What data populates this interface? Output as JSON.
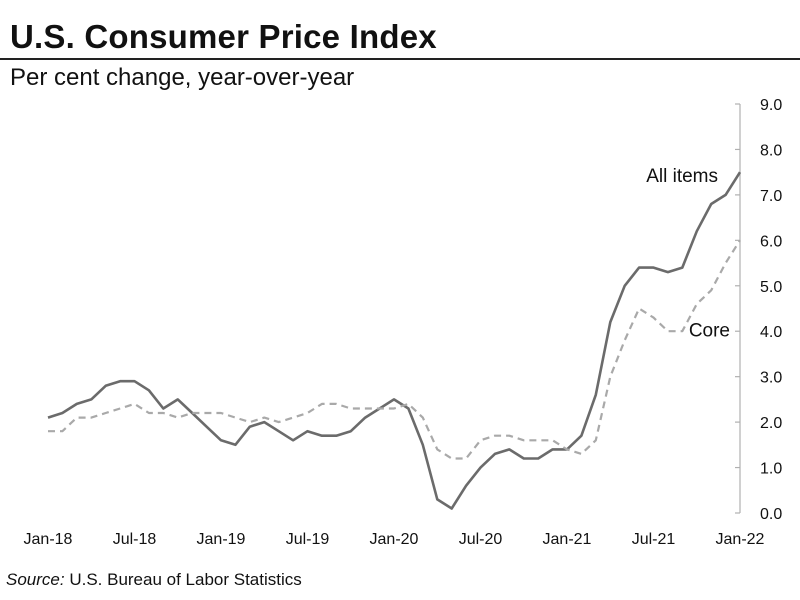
{
  "title": "U.S. Consumer Price Index",
  "subtitle": "Per cent change, year-over-year",
  "source_label": "Source:",
  "source_text": " U.S. Bureau of Labor Statistics",
  "colors": {
    "all_items": "#6b6b6b",
    "core": "#a9a9a9",
    "axis": "#b0b0b0"
  },
  "chart_data": {
    "type": "line",
    "title": "U.S. Consumer Price Index",
    "subtitle": "Per cent change, year-over-year",
    "xlabel": "",
    "ylabel": "",
    "ylim": [
      0,
      9
    ],
    "y_axis_position": "right",
    "y_ticks": [
      "0.0",
      "1.0",
      "2.0",
      "3.0",
      "4.0",
      "5.0",
      "6.0",
      "7.0",
      "8.0",
      "9.0"
    ],
    "x_tick_labels": [
      "Jan-18",
      "Jul-18",
      "Jan-19",
      "Jul-19",
      "Jan-20",
      "Jul-20",
      "Jan-21",
      "Jul-21",
      "Jan-22"
    ],
    "x": [
      "Jan-18",
      "Feb-18",
      "Mar-18",
      "Apr-18",
      "May-18",
      "Jun-18",
      "Jul-18",
      "Aug-18",
      "Sep-18",
      "Oct-18",
      "Nov-18",
      "Dec-18",
      "Jan-19",
      "Feb-19",
      "Mar-19",
      "Apr-19",
      "May-19",
      "Jun-19",
      "Jul-19",
      "Aug-19",
      "Sep-19",
      "Oct-19",
      "Nov-19",
      "Dec-19",
      "Jan-20",
      "Feb-20",
      "Mar-20",
      "Apr-20",
      "May-20",
      "Jun-20",
      "Jul-20",
      "Aug-20",
      "Sep-20",
      "Oct-20",
      "Nov-20",
      "Dec-20",
      "Jan-21",
      "Feb-21",
      "Mar-21",
      "Apr-21",
      "May-21",
      "Jun-21",
      "Jul-21",
      "Aug-21",
      "Sep-21",
      "Oct-21",
      "Nov-21",
      "Dec-21",
      "Jan-22"
    ],
    "grid": false,
    "series": [
      {
        "name": "All items",
        "style": "solid",
        "values": [
          2.1,
          2.2,
          2.4,
          2.5,
          2.8,
          2.9,
          2.9,
          2.7,
          2.3,
          2.5,
          2.2,
          1.9,
          1.6,
          1.5,
          1.9,
          2.0,
          1.8,
          1.6,
          1.8,
          1.7,
          1.7,
          1.8,
          2.1,
          2.3,
          2.5,
          2.3,
          1.5,
          0.3,
          0.1,
          0.6,
          1.0,
          1.3,
          1.4,
          1.2,
          1.2,
          1.4,
          1.4,
          1.7,
          2.6,
          4.2,
          5.0,
          5.4,
          5.4,
          5.3,
          5.4,
          6.2,
          6.8,
          7.0,
          7.5
        ]
      },
      {
        "name": "Core",
        "style": "dashed",
        "values": [
          1.8,
          1.8,
          2.1,
          2.1,
          2.2,
          2.3,
          2.4,
          2.2,
          2.2,
          2.1,
          2.2,
          2.2,
          2.2,
          2.1,
          2.0,
          2.1,
          2.0,
          2.1,
          2.2,
          2.4,
          2.4,
          2.3,
          2.3,
          2.3,
          2.3,
          2.4,
          2.1,
          1.4,
          1.2,
          1.2,
          1.6,
          1.7,
          1.7,
          1.6,
          1.6,
          1.6,
          1.4,
          1.3,
          1.6,
          3.0,
          3.8,
          4.5,
          4.3,
          4.0,
          4.0,
          4.6,
          4.9,
          5.5,
          6.0
        ]
      }
    ],
    "annotations": [
      {
        "text": "All items",
        "series": "All items"
      },
      {
        "text": "Core",
        "series": "Core"
      }
    ]
  }
}
